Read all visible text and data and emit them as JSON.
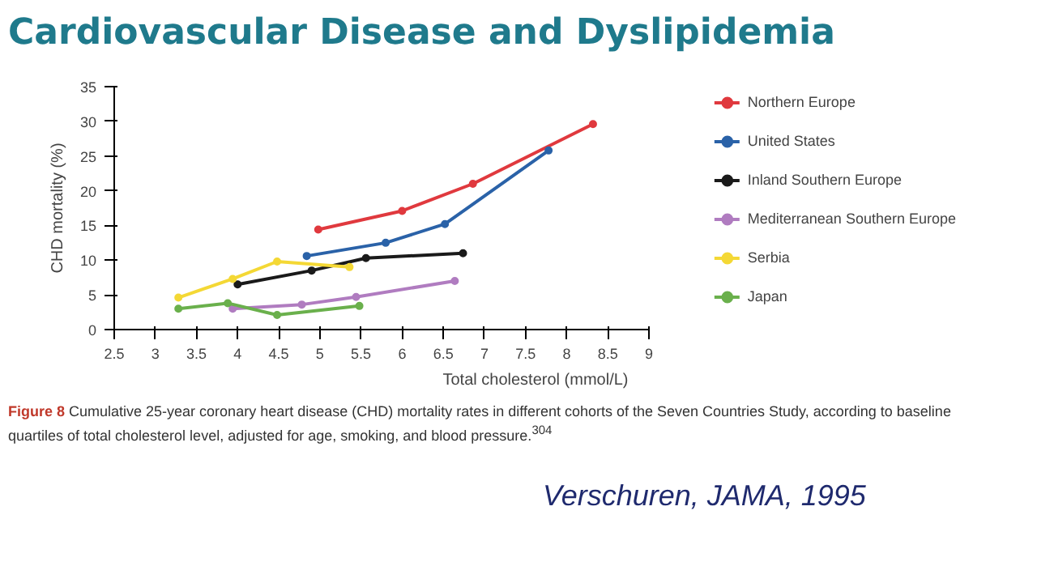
{
  "chart_data": {
    "type": "line",
    "title": "Cardiovascular Disease and Dyslipidemia",
    "xlabel": "Total cholesterol (mmol/L)",
    "ylabel": "CHD mortality (%)",
    "xlim": [
      2.5,
      9
    ],
    "xticks": [
      2.5,
      3,
      3.5,
      4,
      4.5,
      5,
      5.5,
      6,
      6.5,
      7,
      7.5,
      8,
      8.5,
      9
    ],
    "ylim": [
      0,
      35
    ],
    "yticks": [
      0,
      5,
      10,
      15,
      20,
      25,
      30,
      35
    ],
    "grid": false,
    "legend": "right",
    "marker": "circle",
    "line_style": "solid",
    "series": [
      {
        "name": "Northern Europe",
        "color": "#e0393e",
        "x": [
          4.98,
          6.0,
          6.86,
          8.32
        ],
        "values": [
          14.4,
          17.1,
          21.0,
          29.6
        ]
      },
      {
        "name": "United States",
        "color": "#2a62a8",
        "x": [
          4.84,
          5.8,
          6.52,
          7.78
        ],
        "values": [
          10.6,
          12.5,
          15.2,
          25.8
        ]
      },
      {
        "name": "Inland Southern Europe",
        "color": "#1a1a1a",
        "x": [
          4.0,
          4.9,
          5.56,
          6.74
        ],
        "values": [
          6.5,
          8.5,
          10.3,
          11.0
        ]
      },
      {
        "name": "Mediterranean Southern Europe",
        "color": "#b07cc0",
        "x": [
          3.94,
          4.78,
          5.44,
          6.64
        ],
        "values": [
          3.0,
          3.6,
          4.7,
          7.0
        ]
      },
      {
        "name": "Serbia",
        "color": "#f4d835",
        "x": [
          3.28,
          3.94,
          4.48,
          5.36
        ],
        "values": [
          4.6,
          7.3,
          9.8,
          9.0
        ]
      },
      {
        "name": "Japan",
        "color": "#6ab04c",
        "x": [
          3.28,
          3.88,
          4.48,
          5.48
        ],
        "values": [
          3.0,
          3.8,
          2.1,
          3.4
        ]
      }
    ],
    "annotations": [
      "Figure 8",
      "Cumulative 25-year coronary heart disease (CHD) mortality rates in different cohorts of the Seven Countries Study, according to baseline quartiles of total cholesterol level, adjusted for age, smoking, and blood pressure.$^{304}$",
      "Verschuren, JAMA, 1995"
    ]
  }
}
